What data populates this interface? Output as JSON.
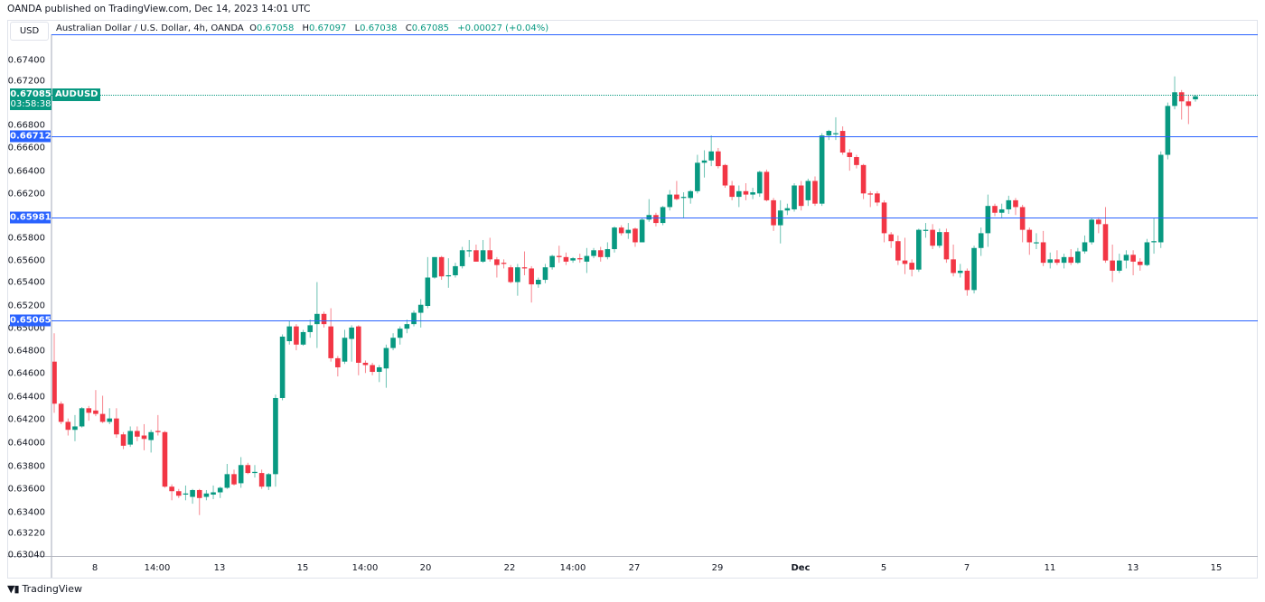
{
  "header": {
    "published": "OANDA published on TradingView.com, Dec 14, 2023 14:01 UTC"
  },
  "currency": "USD",
  "legend": {
    "title": "Australian Dollar / U.S. Dollar, 4h, OANDA",
    "o_label": "O",
    "o": "0.67058",
    "h_label": "H",
    "h": "0.67097",
    "l_label": "L",
    "l": "0.67038",
    "c_label": "C",
    "c": "0.67085",
    "change": "+0.00027 (+0.04%)"
  },
  "current": {
    "price": "0.67085",
    "countdown": "03:58:38",
    "symbol": "AUDUSD"
  },
  "horizontal_lines": [
    "0.66712",
    "0.65981",
    "0.65065"
  ],
  "colors": {
    "up": "#089981",
    "down": "#F23645",
    "line": "#2962ff"
  },
  "footer": {
    "brand": "TradingView",
    "logo": "TV"
  },
  "chart_data": {
    "type": "candlestick",
    "title": "Australian Dollar / U.S. Dollar, 4h, OANDA",
    "yaxis_ticks": [
      "0.67400",
      "0.67200",
      "0.66800",
      "0.66600",
      "0.66400",
      "0.66200",
      "0.65800",
      "0.65600",
      "0.65400",
      "0.65200",
      "0.65000",
      "0.64800",
      "0.64600",
      "0.64400",
      "0.64200",
      "0.64000",
      "0.63800",
      "0.63600",
      "0.63400",
      "0.63220",
      "0.63040"
    ],
    "xaxis_ticks": [
      "8",
      "14:00",
      "13",
      "15",
      "14:00",
      "20",
      "22",
      "14:00",
      "27",
      "29",
      "Dec",
      "5",
      "7",
      "11",
      "13",
      "15"
    ],
    "ylim": [
      0.6304,
      0.6755
    ],
    "ohlc": [
      [
        0.6475,
        0.65,
        0.643,
        0.6438
      ],
      [
        0.6438,
        0.644,
        0.642,
        0.6422
      ],
      [
        0.6422,
        0.6425,
        0.641,
        0.6415
      ],
      [
        0.6415,
        0.6428,
        0.6405,
        0.6418
      ],
      [
        0.6418,
        0.6435,
        0.6417,
        0.6434
      ],
      [
        0.6434,
        0.6436,
        0.6423,
        0.643
      ],
      [
        0.6432,
        0.645,
        0.6427,
        0.6429
      ],
      [
        0.6429,
        0.6445,
        0.6421,
        0.6422
      ],
      [
        0.6422,
        0.6434,
        0.642,
        0.6425
      ],
      [
        0.6425,
        0.6434,
        0.6408,
        0.6411
      ],
      [
        0.6411,
        0.6413,
        0.6398,
        0.6401
      ],
      [
        0.6402,
        0.6418,
        0.64,
        0.6414
      ],
      [
        0.6414,
        0.6418,
        0.6405,
        0.6409
      ],
      [
        0.641,
        0.642,
        0.6397,
        0.6407
      ],
      [
        0.6406,
        0.6415,
        0.6395,
        0.6413
      ],
      [
        0.6414,
        0.6428,
        0.641,
        0.6413
      ],
      [
        0.6413,
        0.6414,
        0.6364,
        0.6365
      ],
      [
        0.6365,
        0.6367,
        0.6353,
        0.6361
      ],
      [
        0.6361,
        0.6363,
        0.6355,
        0.6357
      ],
      [
        0.6358,
        0.6366,
        0.6353,
        0.6359
      ],
      [
        0.6356,
        0.6363,
        0.635,
        0.6362
      ],
      [
        0.6362,
        0.6363,
        0.634,
        0.6355
      ],
      [
        0.6356,
        0.6362,
        0.6353,
        0.6359
      ],
      [
        0.6358,
        0.6366,
        0.6354,
        0.636
      ],
      [
        0.636,
        0.6365,
        0.6355,
        0.6364
      ],
      [
        0.6364,
        0.6385,
        0.6363,
        0.6376
      ],
      [
        0.6376,
        0.638,
        0.6366,
        0.6367
      ],
      [
        0.6368,
        0.6391,
        0.6364,
        0.6384
      ],
      [
        0.6384,
        0.6386,
        0.6376,
        0.6377
      ],
      [
        0.6377,
        0.6384,
        0.6373,
        0.6378
      ],
      [
        0.6377,
        0.638,
        0.6363,
        0.6365
      ],
      [
        0.6365,
        0.6377,
        0.6362,
        0.6376
      ],
      [
        0.6376,
        0.6446,
        0.6365,
        0.6443
      ],
      [
        0.6443,
        0.6499,
        0.6441,
        0.6497
      ],
      [
        0.6493,
        0.6511,
        0.649,
        0.6506
      ],
      [
        0.6506,
        0.6508,
        0.6485,
        0.649
      ],
      [
        0.649,
        0.6503,
        0.6489,
        0.6501
      ],
      [
        0.6501,
        0.6512,
        0.6496,
        0.6507
      ],
      [
        0.6508,
        0.6545,
        0.6487,
        0.6517
      ],
      [
        0.6517,
        0.6519,
        0.6505,
        0.6508
      ],
      [
        0.6506,
        0.6522,
        0.6475,
        0.6478
      ],
      [
        0.6478,
        0.648,
        0.6462,
        0.647
      ],
      [
        0.6475,
        0.6503,
        0.6473,
        0.6496
      ],
      [
        0.6495,
        0.6507,
        0.6475,
        0.6505
      ],
      [
        0.6506,
        0.6507,
        0.6463,
        0.6474
      ],
      [
        0.6474,
        0.6476,
        0.6465,
        0.6472
      ],
      [
        0.6472,
        0.6474,
        0.6463,
        0.6466
      ],
      [
        0.6466,
        0.6472,
        0.6457,
        0.647
      ],
      [
        0.6469,
        0.649,
        0.6452,
        0.6487
      ],
      [
        0.6487,
        0.65,
        0.6485,
        0.6496
      ],
      [
        0.6496,
        0.6506,
        0.649,
        0.6504
      ],
      [
        0.6504,
        0.6512,
        0.65,
        0.6508
      ],
      [
        0.6508,
        0.652,
        0.6506,
        0.6518
      ],
      [
        0.6518,
        0.653,
        0.6505,
        0.6525
      ],
      [
        0.6524,
        0.6567,
        0.6522,
        0.6549
      ],
      [
        0.6549,
        0.6567,
        0.6548,
        0.6567
      ],
      [
        0.6567,
        0.6568,
        0.6547,
        0.655
      ],
      [
        0.6551,
        0.6566,
        0.654,
        0.6551
      ],
      [
        0.6551,
        0.6562,
        0.6549,
        0.6559
      ],
      [
        0.6559,
        0.6576,
        0.6557,
        0.6573
      ],
      [
        0.6573,
        0.6582,
        0.6567,
        0.6573
      ],
      [
        0.6573,
        0.6578,
        0.6563,
        0.6563
      ],
      [
        0.6563,
        0.6582,
        0.6562,
        0.6573
      ],
      [
        0.6573,
        0.6584,
        0.6563,
        0.6565
      ],
      [
        0.6565,
        0.6567,
        0.6549,
        0.656
      ],
      [
        0.6562,
        0.6565,
        0.6557,
        0.6561
      ],
      [
        0.6558,
        0.656,
        0.6544,
        0.6545
      ],
      [
        0.6545,
        0.6561,
        0.6533,
        0.6558
      ],
      [
        0.6558,
        0.6572,
        0.6551,
        0.6557
      ],
      [
        0.6557,
        0.6559,
        0.6527,
        0.6543
      ],
      [
        0.6543,
        0.6549,
        0.654,
        0.6547
      ],
      [
        0.6547,
        0.6561,
        0.6544,
        0.6558
      ],
      [
        0.6558,
        0.6569,
        0.6556,
        0.6568
      ],
      [
        0.6568,
        0.6577,
        0.6562,
        0.6567
      ],
      [
        0.6567,
        0.6571,
        0.656,
        0.6563
      ],
      [
        0.6564,
        0.6567,
        0.6562,
        0.6566
      ],
      [
        0.6566,
        0.657,
        0.6562,
        0.6565
      ],
      [
        0.6563,
        0.6575,
        0.6553,
        0.6568
      ],
      [
        0.6568,
        0.6575,
        0.6566,
        0.6573
      ],
      [
        0.6573,
        0.6576,
        0.6563,
        0.6567
      ],
      [
        0.6567,
        0.658,
        0.6565,
        0.6574
      ],
      [
        0.6574,
        0.6594,
        0.6571,
        0.6593
      ],
      [
        0.6593,
        0.6595,
        0.6586,
        0.6588
      ],
      [
        0.6588,
        0.6597,
        0.6583,
        0.6591
      ],
      [
        0.6592,
        0.6593,
        0.6576,
        0.658
      ],
      [
        0.658,
        0.6601,
        0.658,
        0.66
      ],
      [
        0.66,
        0.6618,
        0.6598,
        0.6604
      ],
      [
        0.6604,
        0.6606,
        0.6594,
        0.6597
      ],
      [
        0.6597,
        0.6612,
        0.6595,
        0.6611
      ],
      [
        0.6611,
        0.6626,
        0.6608,
        0.6622
      ],
      [
        0.6622,
        0.6634,
        0.6617,
        0.6618
      ],
      [
        0.6619,
        0.6624,
        0.6601,
        0.662
      ],
      [
        0.6619,
        0.6626,
        0.6614,
        0.6625
      ],
      [
        0.6625,
        0.6657,
        0.6623,
        0.665
      ],
      [
        0.665,
        0.6661,
        0.6637,
        0.6652
      ],
      [
        0.6652,
        0.6674,
        0.6647,
        0.666
      ],
      [
        0.666,
        0.6663,
        0.6645,
        0.6647
      ],
      [
        0.6648,
        0.6649,
        0.6628,
        0.663
      ],
      [
        0.663,
        0.6634,
        0.6617,
        0.662
      ],
      [
        0.662,
        0.663,
        0.6611,
        0.6625
      ],
      [
        0.6625,
        0.6632,
        0.6617,
        0.6622
      ],
      [
        0.6622,
        0.6628,
        0.6618,
        0.6624
      ],
      [
        0.6623,
        0.6643,
        0.662,
        0.6642
      ],
      [
        0.6642,
        0.6644,
        0.6616,
        0.6617
      ],
      [
        0.6617,
        0.6619,
        0.659,
        0.6595
      ],
      [
        0.6595,
        0.6617,
        0.6579,
        0.6608
      ],
      [
        0.6608,
        0.6614,
        0.6604,
        0.661
      ],
      [
        0.6609,
        0.6632,
        0.6607,
        0.663
      ],
      [
        0.663,
        0.6634,
        0.6608,
        0.6612
      ],
      [
        0.6617,
        0.6636,
        0.6612,
        0.6634
      ],
      [
        0.6634,
        0.6638,
        0.6612,
        0.6614
      ],
      [
        0.6614,
        0.6676,
        0.6612,
        0.6674
      ],
      [
        0.6674,
        0.6679,
        0.667,
        0.6678
      ],
      [
        0.6675,
        0.669,
        0.667,
        0.6676
      ],
      [
        0.6678,
        0.6682,
        0.6657,
        0.6659
      ],
      [
        0.6659,
        0.6662,
        0.6643,
        0.6655
      ],
      [
        0.6655,
        0.6657,
        0.6645,
        0.6648
      ],
      [
        0.6648,
        0.6649,
        0.6618,
        0.6623
      ],
      [
        0.6623,
        0.6625,
        0.6611,
        0.6622
      ],
      [
        0.6623,
        0.6625,
        0.6612,
        0.6615
      ],
      [
        0.6615,
        0.6617,
        0.658,
        0.6588
      ],
      [
        0.6587,
        0.6589,
        0.6575,
        0.6581
      ],
      [
        0.6581,
        0.6586,
        0.656,
        0.6564
      ],
      [
        0.6564,
        0.6584,
        0.6552,
        0.6561
      ],
      [
        0.6562,
        0.6565,
        0.655,
        0.6556
      ],
      [
        0.6556,
        0.6592,
        0.6554,
        0.6591
      ],
      [
        0.659,
        0.6597,
        0.6584,
        0.6591
      ],
      [
        0.6591,
        0.6596,
        0.6574,
        0.6577
      ],
      [
        0.6577,
        0.6592,
        0.6575,
        0.6589
      ],
      [
        0.6589,
        0.6592,
        0.6562,
        0.6565
      ],
      [
        0.6565,
        0.6578,
        0.655,
        0.6553
      ],
      [
        0.6553,
        0.6561,
        0.6549,
        0.6555
      ],
      [
        0.6555,
        0.6557,
        0.6533,
        0.6538
      ],
      [
        0.6538,
        0.6577,
        0.6535,
        0.6575
      ],
      [
        0.6575,
        0.6593,
        0.6568,
        0.6588
      ],
      [
        0.6588,
        0.6622,
        0.6576,
        0.6612
      ],
      [
        0.6612,
        0.6614,
        0.6603,
        0.6606
      ],
      [
        0.6606,
        0.6614,
        0.6601,
        0.6609
      ],
      [
        0.6609,
        0.6621,
        0.6605,
        0.6617
      ],
      [
        0.6617,
        0.6619,
        0.6604,
        0.6611
      ],
      [
        0.6611,
        0.6613,
        0.658,
        0.6591
      ],
      [
        0.6591,
        0.6593,
        0.6569,
        0.658
      ],
      [
        0.658,
        0.6588,
        0.6574,
        0.658
      ],
      [
        0.658,
        0.659,
        0.6559,
        0.6562
      ],
      [
        0.6562,
        0.6571,
        0.6557,
        0.6565
      ],
      [
        0.6565,
        0.6573,
        0.656,
        0.6562
      ],
      [
        0.6562,
        0.657,
        0.6557,
        0.6567
      ],
      [
        0.6567,
        0.6574,
        0.656,
        0.6562
      ],
      [
        0.6562,
        0.6575,
        0.6561,
        0.6572
      ],
      [
        0.6572,
        0.6586,
        0.657,
        0.658
      ],
      [
        0.658,
        0.6601,
        0.6578,
        0.66
      ],
      [
        0.66,
        0.6602,
        0.6588,
        0.6596
      ],
      [
        0.6596,
        0.6611,
        0.6562,
        0.6564
      ],
      [
        0.6564,
        0.6578,
        0.6545,
        0.6555
      ],
      [
        0.6555,
        0.657,
        0.6553,
        0.6564
      ],
      [
        0.6564,
        0.6573,
        0.6557,
        0.6569
      ],
      [
        0.6569,
        0.6573,
        0.6551,
        0.6563
      ],
      [
        0.6563,
        0.6566,
        0.6555,
        0.656
      ],
      [
        0.656,
        0.6583,
        0.6559,
        0.658
      ],
      [
        0.658,
        0.6601,
        0.657,
        0.6581
      ],
      [
        0.658,
        0.666,
        0.6575,
        0.6657
      ],
      [
        0.6657,
        0.6703,
        0.6653,
        0.67
      ],
      [
        0.67,
        0.6726,
        0.6697,
        0.6712
      ],
      [
        0.6712,
        0.6714,
        0.6688,
        0.6704
      ],
      [
        0.6704,
        0.671,
        0.6684,
        0.67
      ],
      [
        0.67058,
        0.67097,
        0.67038,
        0.67085
      ]
    ]
  }
}
